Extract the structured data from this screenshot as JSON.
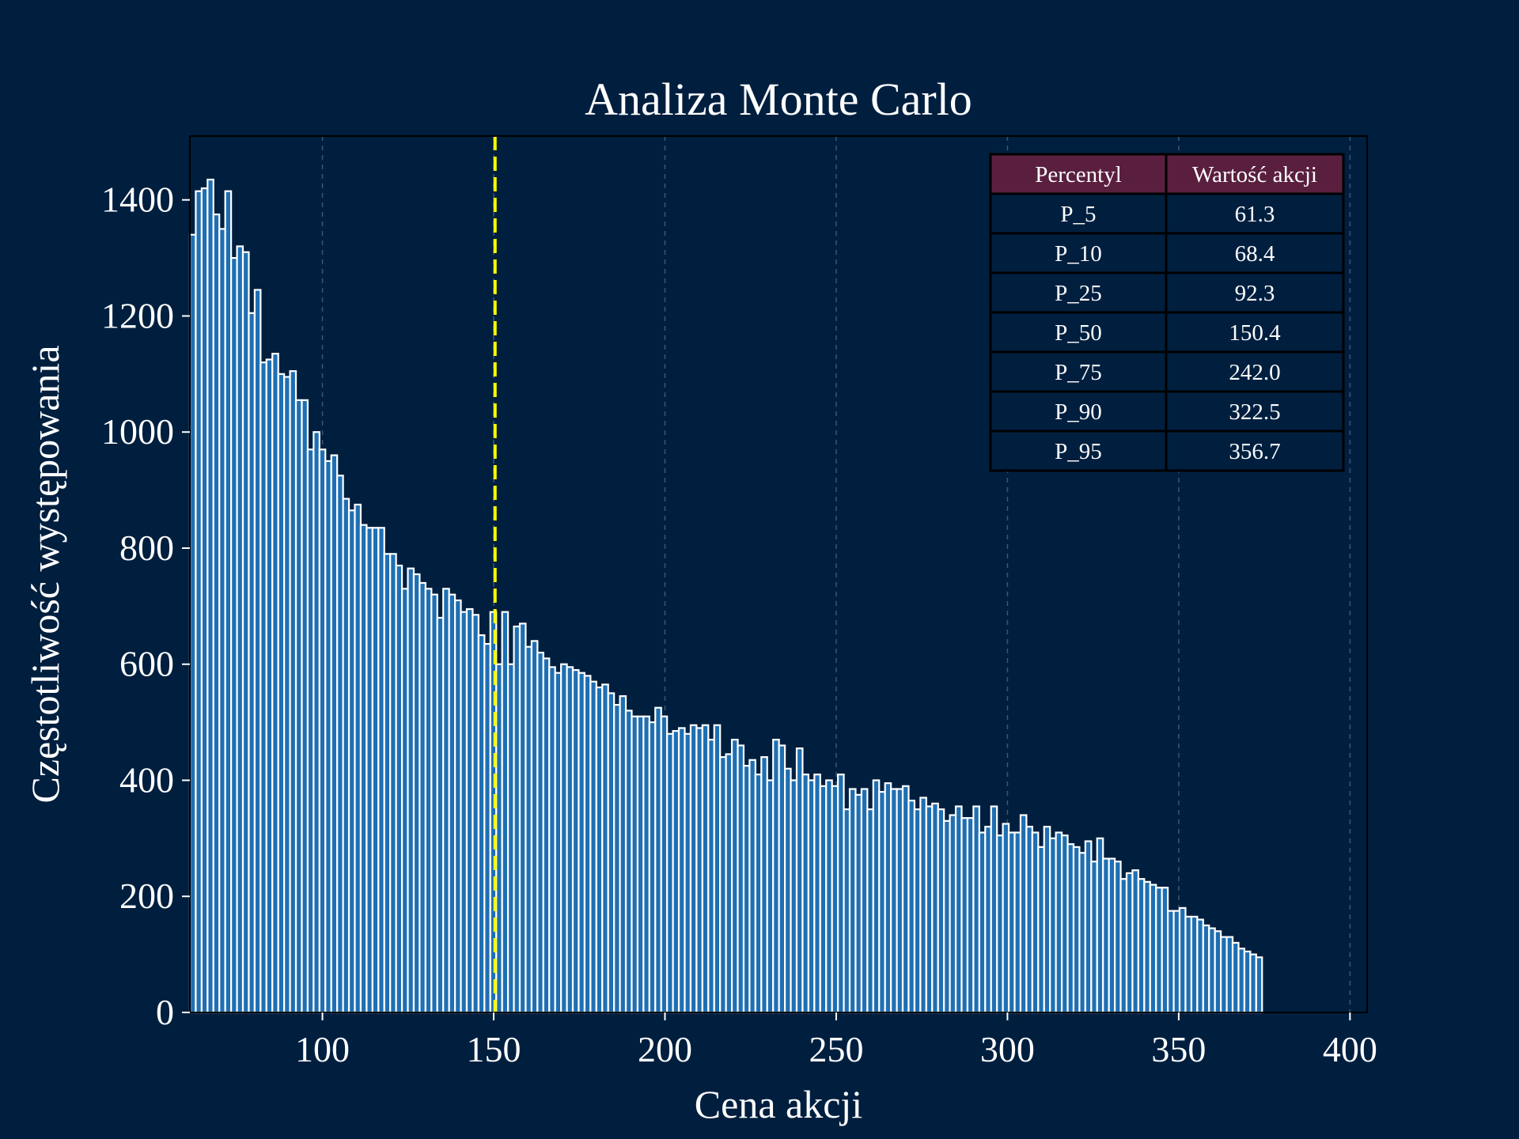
{
  "chart_data": {
    "type": "bar",
    "title": "Analiza Monte Carlo",
    "xlabel": "Cena akcji",
    "ylabel": "Częstotliwość występowania",
    "xlim": [
      61.3,
      405
    ],
    "ylim": [
      0,
      1510
    ],
    "x_ticks": [
      100,
      150,
      200,
      250,
      300,
      350,
      400
    ],
    "y_ticks": [
      0,
      200,
      400,
      600,
      800,
      1000,
      1200,
      1400
    ],
    "grid": "vertical dashed",
    "bin_start": 61.3,
    "bin_width": 1.72,
    "values": [
      1340,
      1415,
      1420,
      1435,
      1375,
      1350,
      1415,
      1300,
      1320,
      1310,
      1205,
      1245,
      1120,
      1125,
      1135,
      1100,
      1095,
      1105,
      1055,
      1055,
      970,
      1000,
      970,
      950,
      960,
      925,
      885,
      865,
      875,
      840,
      835,
      835,
      835,
      790,
      790,
      770,
      730,
      765,
      755,
      740,
      730,
      720,
      680,
      730,
      720,
      710,
      690,
      695,
      685,
      650,
      635,
      690,
      600,
      690,
      600,
      665,
      670,
      630,
      640,
      620,
      610,
      595,
      585,
      600,
      595,
      590,
      585,
      580,
      570,
      560,
      565,
      550,
      530,
      545,
      520,
      510,
      510,
      510,
      500,
      525,
      510,
      480,
      485,
      490,
      480,
      495,
      490,
      495,
      470,
      495,
      440,
      445,
      470,
      460,
      425,
      435,
      410,
      440,
      400,
      470,
      460,
      420,
      400,
      455,
      410,
      400,
      410,
      390,
      400,
      390,
      410,
      350,
      385,
      375,
      385,
      350,
      400,
      380,
      395,
      385,
      385,
      390,
      365,
      350,
      370,
      355,
      360,
      350,
      330,
      340,
      355,
      335,
      335,
      355,
      310,
      320,
      355,
      305,
      325,
      310,
      310,
      340,
      320,
      310,
      285,
      320,
      300,
      310,
      305,
      290,
      285,
      275,
      295,
      260,
      300,
      265,
      265,
      260,
      230,
      240,
      245,
      230,
      225,
      220,
      215,
      215,
      175,
      175,
      180,
      165,
      165,
      160,
      150,
      145,
      140,
      130,
      130,
      120,
      110,
      105,
      100,
      95
    ]
  },
  "mean_line": {
    "value": 150.4,
    "color": "#ffff00"
  },
  "percentile_table": {
    "headers": [
      "Percentyl",
      "Wartość akcji"
    ],
    "rows": [
      [
        "P_5",
        "61.3"
      ],
      [
        "P_10",
        "68.4"
      ],
      [
        "P_25",
        "92.3"
      ],
      [
        "P_50",
        "150.4"
      ],
      [
        "P_75",
        "242.0"
      ],
      [
        "P_90",
        "322.5"
      ],
      [
        "P_95",
        "356.7"
      ]
    ]
  },
  "colors": {
    "background": "#001f3f",
    "bar_fill": "#1f6fb2",
    "bar_edge": "#ffffff",
    "table_header": "#5a1f3f",
    "table_cell": "#001f3f",
    "text": "#ffffff",
    "grid": "#3a5575"
  }
}
